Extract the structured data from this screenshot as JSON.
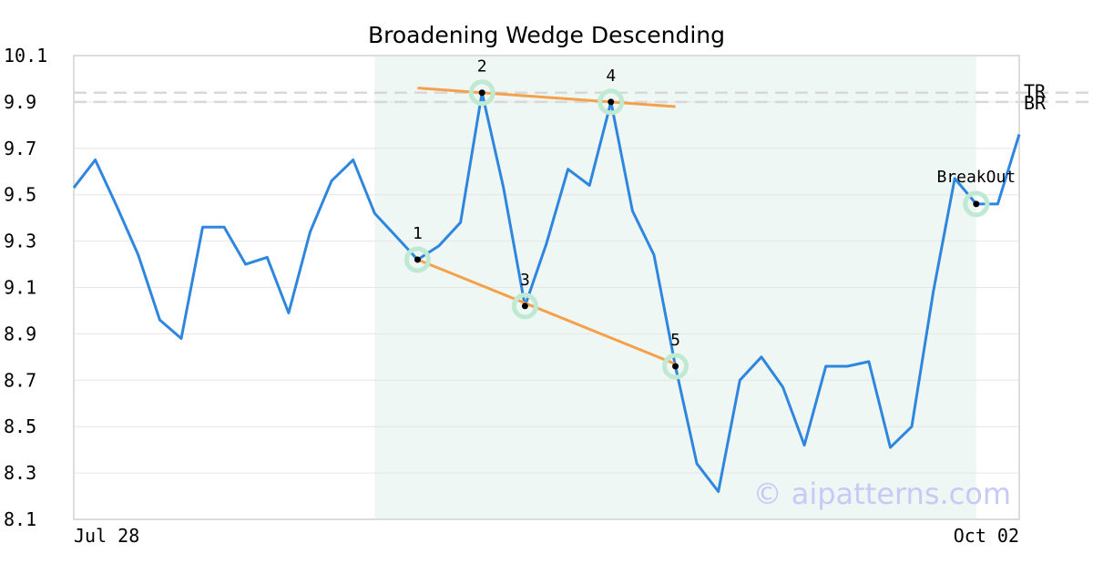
{
  "chart_data": {
    "type": "line",
    "title": "Broadening Wedge Descending",
    "xlabel": "",
    "ylabel": "",
    "ylim": [
      8.1,
      10.1
    ],
    "yticks": [
      8.1,
      8.3,
      8.5,
      8.7,
      8.9,
      9.1,
      9.3,
      9.5,
      9.7,
      9.9,
      10.1
    ],
    "x_start_label": "Jul 28",
    "x_end_label": "Oct 02",
    "grid": "horizontal",
    "series": [
      {
        "color": "#2e86de",
        "values": [
          9.53,
          9.65,
          9.45,
          9.24,
          8.96,
          8.88,
          9.36,
          9.36,
          9.2,
          9.23,
          8.99,
          9.34,
          9.56,
          9.65,
          9.42,
          9.32,
          9.22,
          9.28,
          9.38,
          9.94,
          9.53,
          9.02,
          9.29,
          9.61,
          9.54,
          9.9,
          9.43,
          9.24,
          8.76,
          8.34,
          8.22,
          8.7,
          8.8,
          8.67,
          8.42,
          8.76,
          8.76,
          8.78,
          8.41,
          8.5,
          9.08,
          9.57,
          9.46,
          9.46,
          9.76
        ]
      }
    ],
    "pattern_region": {
      "start_index": 14,
      "end_index": 42,
      "color": "#eef7f3"
    },
    "pivots": [
      {
        "label": "1",
        "index": 16,
        "value": 9.22
      },
      {
        "label": "2",
        "index": 19,
        "value": 9.94
      },
      {
        "label": "3",
        "index": 21,
        "value": 9.02
      },
      {
        "label": "4",
        "index": 25,
        "value": 9.9
      },
      {
        "label": "5",
        "index": 28,
        "value": 8.76
      },
      {
        "label": "BreakOut",
        "index": 42,
        "value": 9.46
      }
    ],
    "trendlines": [
      {
        "name": "upper",
        "color": "#f5a04a",
        "from": [
          16,
          9.96
        ],
        "to": [
          28,
          9.88
        ]
      },
      {
        "name": "lower",
        "color": "#f5a04a",
        "from": [
          16,
          9.22
        ],
        "to": [
          28,
          8.77
        ]
      }
    ],
    "reference_lines": [
      {
        "label": "TR",
        "value": 9.94
      },
      {
        "label": "BR",
        "value": 9.9
      }
    ],
    "watermark": "© aipatterns.com"
  }
}
